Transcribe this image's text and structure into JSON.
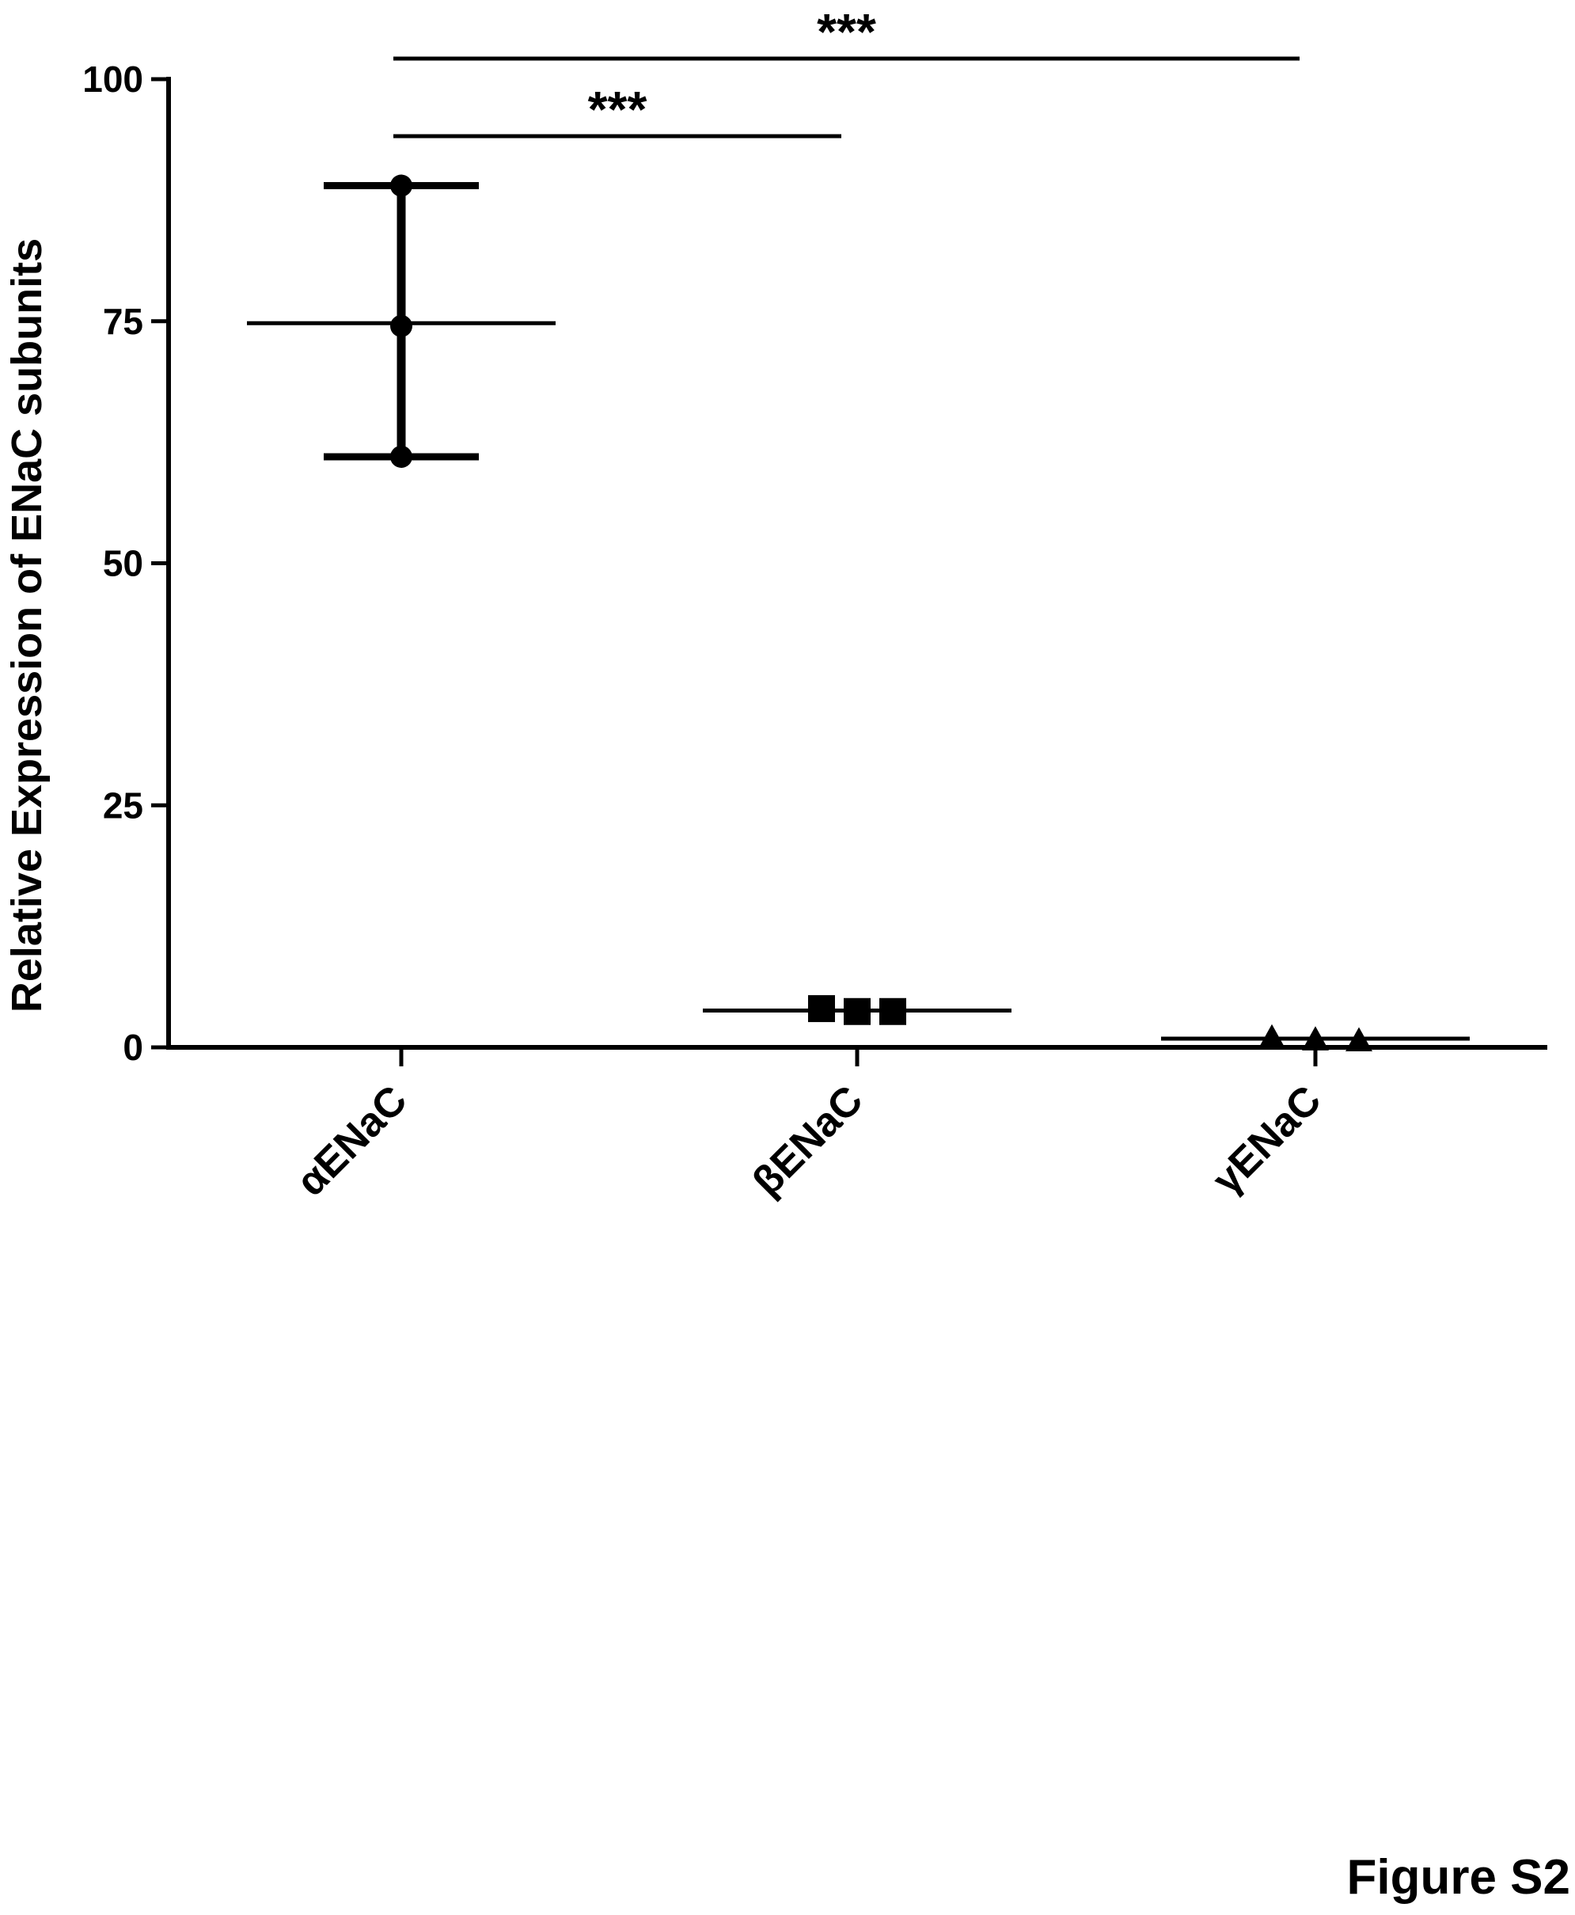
{
  "chart_data": {
    "type": "scatter",
    "title": "",
    "xlabel": "",
    "ylabel": "Relative Expression of ENaC subunits",
    "ylim": [
      0,
      100
    ],
    "yticks": [
      0,
      25,
      50,
      75,
      100
    ],
    "grid": false,
    "categories": [
      "αENaC",
      "βENaC",
      "γENaC"
    ],
    "groups": [
      {
        "category": "αENaC",
        "points": [
          89.0,
          74.5,
          61.0
        ],
        "mean": 74.8,
        "marker": "circle"
      },
      {
        "category": "βENaC",
        "points": [
          4.0,
          3.7,
          3.7
        ],
        "mean": 3.8,
        "marker": "square"
      },
      {
        "category": "γENaC",
        "points": [
          1.0,
          0.8,
          0.7
        ],
        "mean": 0.9,
        "marker": "triangle"
      }
    ],
    "significance": [
      {
        "from": "αENaC",
        "to": "βENaC",
        "label": "***"
      },
      {
        "from": "αENaC",
        "to": "γENaC",
        "label": "***"
      }
    ]
  },
  "figure_label": "Figure S2"
}
